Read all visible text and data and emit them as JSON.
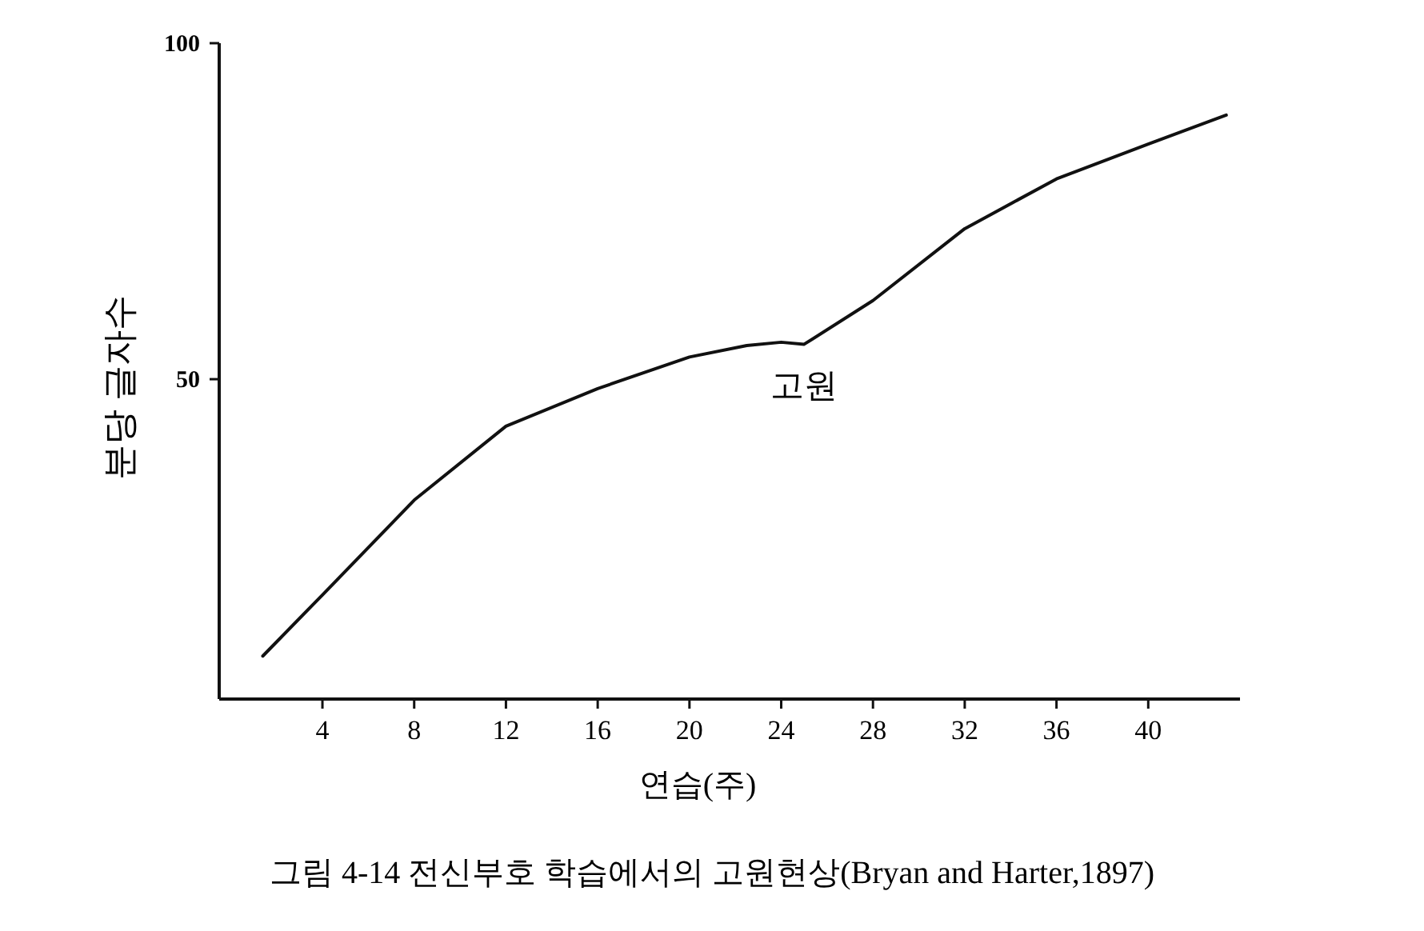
{
  "chart_data": {
    "type": "line",
    "xlabel": "연습(주)",
    "ylabel": "분당 글자수",
    "x": [
      1.4,
      4,
      8,
      12,
      16,
      20,
      22.5,
      24,
      25,
      28,
      32,
      36,
      40,
      43.4
    ],
    "values": [
      8.8,
      17.9,
      32,
      43,
      48.6,
      53.3,
      55,
      55.5,
      55.2,
      61.7,
      72.4,
      79.8,
      85,
      89.3
    ],
    "color": "#111111",
    "xlim": [
      -0.5,
      44
    ],
    "ylim": [
      2.4,
      100
    ],
    "xticks": [
      4,
      8,
      12,
      16,
      20,
      24,
      28,
      32,
      36,
      40
    ],
    "yticks": [
      50,
      100
    ],
    "grid": false,
    "marker": "none",
    "line_style": "solid",
    "annotations": [
      {
        "text": "고원",
        "x": 25,
        "y": 55
      },
      "그림 4-14 전신부호 학습에서의 고원현상(Bryan and Harter,1897)"
    ]
  }
}
